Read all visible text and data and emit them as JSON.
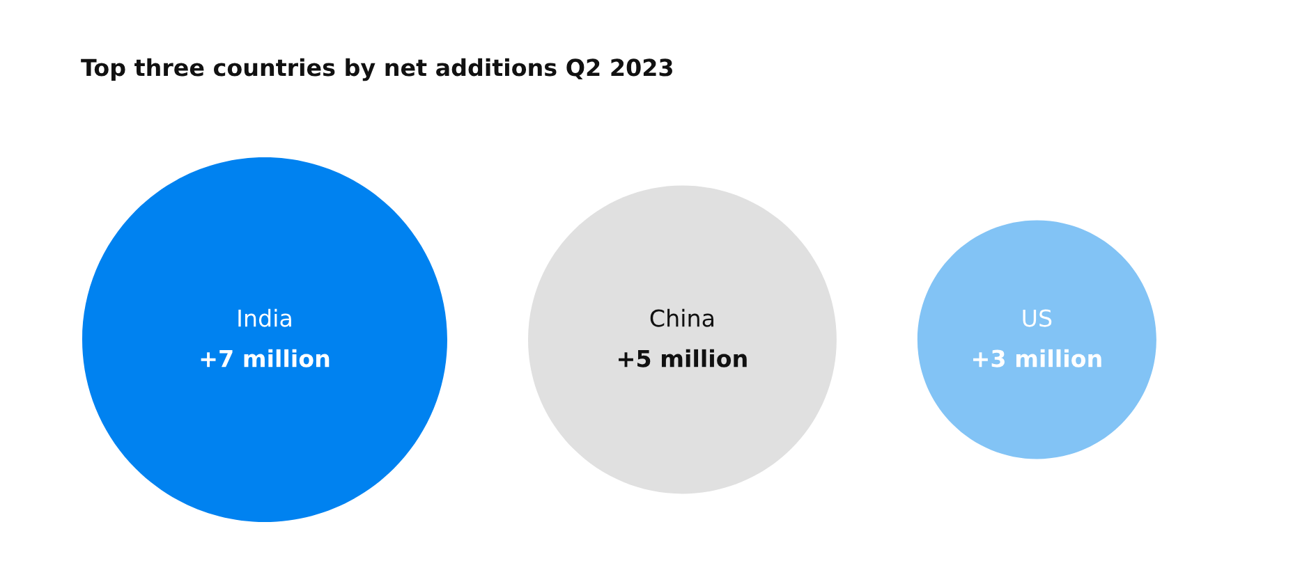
{
  "chart_data": {
    "type": "other",
    "title": "Top three countries by net additions Q2 2023",
    "categories": [
      "India",
      "China",
      "US"
    ],
    "values": [
      7,
      5,
      3
    ],
    "value_labels": [
      "+7 million",
      "+5 million",
      "+3 million"
    ],
    "colors": [
      "#0082f0",
      "#e0e0e0",
      "#82c3f5"
    ]
  }
}
